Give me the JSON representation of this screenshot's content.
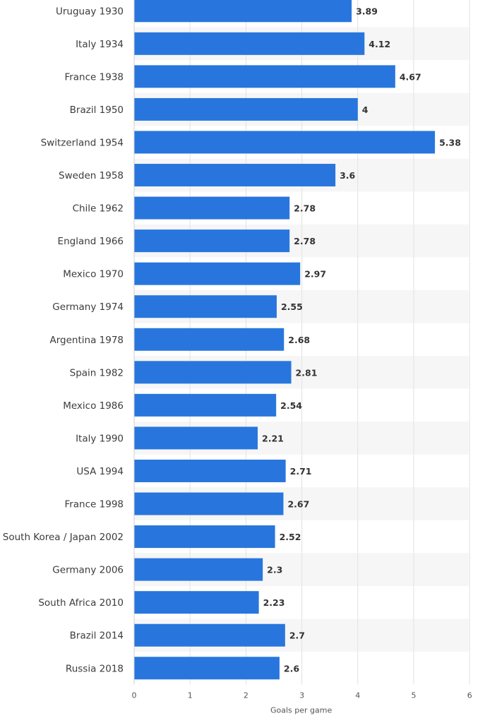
{
  "chart_data": {
    "type": "bar",
    "orientation": "horizontal",
    "categories": [
      "Uruguay 1930",
      "Italy 1934",
      "France 1938",
      "Brazil 1950",
      "Switzerland 1954",
      "Sweden 1958",
      "Chile 1962",
      "England 1966",
      "Mexico 1970",
      "Germany 1974",
      "Argentina 1978",
      "Spain 1982",
      "Mexico 1986",
      "Italy 1990",
      "USA 1994",
      "France 1998",
      "South Korea / Japan 2002",
      "Germany 2006",
      "South Africa 2010",
      "Brazil 2014",
      "Russia 2018"
    ],
    "values": [
      3.89,
      4.12,
      4.67,
      4,
      5.38,
      3.6,
      2.78,
      2.78,
      2.97,
      2.55,
      2.68,
      2.81,
      2.54,
      2.21,
      2.71,
      2.67,
      2.52,
      2.3,
      2.23,
      2.7,
      2.6
    ],
    "value_labels": [
      "3.89",
      "4.12",
      "4.67",
      "4",
      "5.38",
      "3.6",
      "2.78",
      "2.78",
      "2.97",
      "2.55",
      "2.68",
      "2.81",
      "2.54",
      "2.21",
      "2.71",
      "2.67",
      "2.52",
      "2.3",
      "2.23",
      "2.7",
      "2.6"
    ],
    "xlabel": "Goals per game",
    "xlim": [
      0,
      6
    ],
    "xticks": [
      0,
      1,
      2,
      3,
      4,
      5,
      6
    ],
    "grid": "vertical",
    "bar_color": "#2876dd",
    "stripe_color": "#f6f6f6"
  }
}
